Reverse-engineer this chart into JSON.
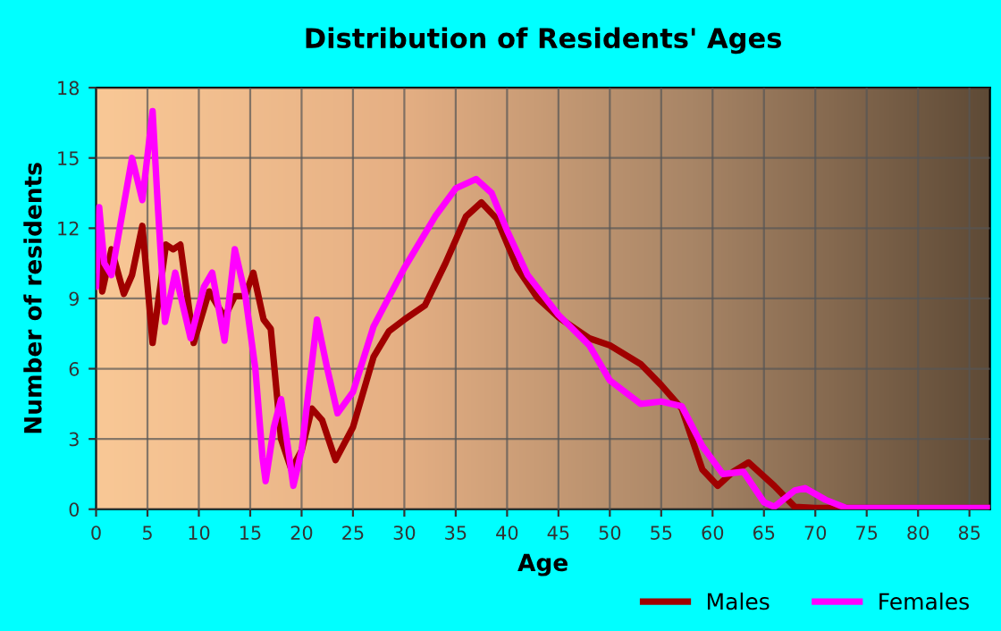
{
  "chart_data": {
    "type": "line",
    "title": "Distribution of Residents' Ages",
    "xlabel": "Age",
    "ylabel": "Number of residents",
    "xlim": [
      0,
      87
    ],
    "xticks": [
      0,
      5,
      10,
      15,
      20,
      25,
      30,
      35,
      40,
      45,
      50,
      55,
      60,
      65,
      70,
      75,
      80,
      85
    ],
    "ylim": [
      0,
      18
    ],
    "yticks": [
      0,
      3,
      6,
      9,
      12,
      15,
      18
    ],
    "grid": true,
    "legend": "bottom",
    "marker": "none",
    "line_style": "solid",
    "series": [
      {
        "name": "Males",
        "color": "#a00000",
        "x": [
          0,
          0.3,
          0.6,
          1.5,
          2.7,
          3.5,
          4.5,
          5.5,
          6.8,
          7.5,
          8.2,
          9.5,
          11,
          12.5,
          13.5,
          14.5,
          15.3,
          16.3,
          17,
          18,
          19,
          20,
          21,
          22,
          23.3,
          25,
          27,
          28.5,
          30,
          32,
          34,
          36,
          37.5,
          39,
          41,
          43,
          45,
          48,
          50,
          53,
          55,
          57,
          59,
          60.5,
          62,
          63.5,
          66,
          68,
          70,
          87
        ],
        "values": [
          10.2,
          11,
          9.3,
          11.1,
          9.2,
          10,
          12.1,
          7.1,
          11.3,
          11.1,
          11.3,
          7.1,
          9.3,
          8.2,
          9.1,
          9.1,
          10.1,
          8.1,
          7.7,
          3,
          1.7,
          2.5,
          4.3,
          3.8,
          2.1,
          3.5,
          6.5,
          7.6,
          8.1,
          8.7,
          10.5,
          12.5,
          13.1,
          12.4,
          10.3,
          9,
          8.2,
          7.3,
          7,
          6.2,
          5.3,
          4.3,
          1.7,
          1,
          1.6,
          2,
          1,
          0.1,
          0.05,
          0.05
        ]
      },
      {
        "name": "Females",
        "color": "#ff00ff",
        "x": [
          0,
          0.3,
          0.8,
          1.5,
          2.5,
          3.5,
          4.5,
          5.5,
          6,
          6.7,
          7.7,
          9.2,
          10.5,
          11.3,
          12.5,
          13.5,
          14.5,
          15.5,
          16.2,
          16.5,
          17.3,
          18,
          19.2,
          20,
          21.5,
          22.5,
          23.5,
          25,
          27,
          30,
          33,
          35,
          37,
          38.5,
          40,
          42,
          45,
          48,
          50,
          53,
          55,
          57,
          59,
          61,
          63,
          65,
          66,
          68,
          69,
          71,
          73,
          87
        ],
        "values": [
          9.5,
          12.9,
          10.5,
          10,
          12.5,
          15,
          13.2,
          17,
          13,
          8,
          10.1,
          7.3,
          9.5,
          10.1,
          7.2,
          11.1,
          9.2,
          6,
          2.2,
          1.2,
          3.5,
          4.7,
          1,
          2.5,
          8.1,
          6,
          4.1,
          5,
          7.8,
          10.3,
          12.5,
          13.7,
          14.1,
          13.5,
          11.9,
          10,
          8.3,
          7,
          5.5,
          4.5,
          4.6,
          4.4,
          2.7,
          1.5,
          1.6,
          0.3,
          0.1,
          0.8,
          0.9,
          0.4,
          0.05,
          0.05
        ]
      }
    ]
  }
}
